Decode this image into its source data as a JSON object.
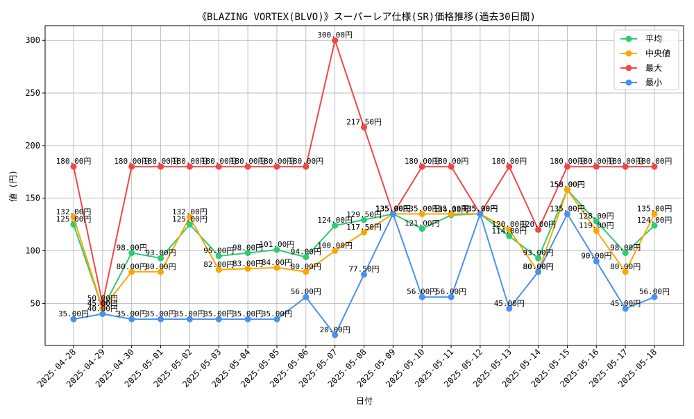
{
  "chart_data": {
    "type": "line",
    "title": "《BLAZING VORTEX(BLVO)》スーパーレア仕様(SR)価格推移(過去30日間)",
    "xlabel": "日付",
    "ylabel": "値 (円)",
    "ylim": [
      10,
      314
    ],
    "yticks": [
      50,
      100,
      150,
      200,
      250,
      300
    ],
    "grid": true,
    "legend_position": "top-right",
    "value_suffix": "円",
    "categories": [
      "2025-04-28",
      "2025-04-29",
      "2025-04-30",
      "2025-05-01",
      "2025-05-02",
      "2025-05-03",
      "2025-05-04",
      "2025-05-05",
      "2025-05-06",
      "2025-05-07",
      "2025-05-08",
      "2025-05-09",
      "2025-05-10",
      "2025-05-11",
      "2025-05-12",
      "2025-05-13",
      "2025-05-14",
      "2025-05-15",
      "2025-05-16",
      "2025-05-17",
      "2025-05-18"
    ],
    "series": [
      {
        "name": "平均",
        "color": "#2ecc71",
        "values": [
          125,
          45,
          98,
          93,
          125,
          95,
          98,
          101,
          94,
          124,
          129.5,
          135,
          121,
          134,
          135,
          114,
          93,
          158,
          128,
          98,
          124
        ]
      },
      {
        "name": "中央値",
        "color": "#ffa500",
        "values": [
          132,
          45,
          80,
          80,
          132,
          82,
          83,
          84,
          80,
          100,
          117.5,
          135,
          135,
          135,
          135,
          120,
          80,
          158,
          119,
          80,
          135
        ]
      },
      {
        "name": "最大",
        "color": "#f44545",
        "values": [
          180,
          50,
          180,
          180,
          180,
          180,
          180,
          180,
          180,
          300,
          217.5,
          135,
          180,
          180,
          135,
          180,
          120,
          180,
          180,
          180,
          180
        ]
      },
      {
        "name": "最小",
        "color": "#4a90f0",
        "values": [
          35,
          40,
          35,
          35,
          35,
          35,
          35,
          35,
          56,
          20,
          77.5,
          135,
          56,
          56,
          135,
          45,
          80,
          135,
          90,
          45,
          56
        ]
      }
    ]
  }
}
